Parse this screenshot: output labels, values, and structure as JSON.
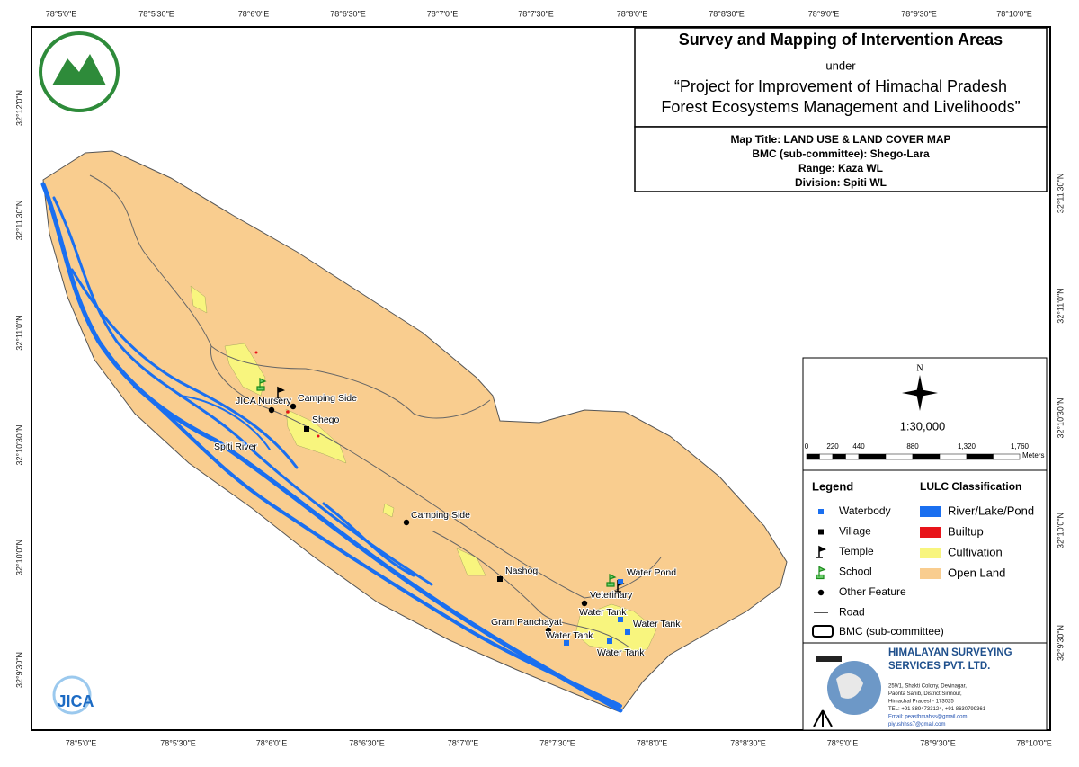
{
  "header": {
    "title": "Survey and Mapping of Intervention Areas",
    "connector": "under",
    "project": [
      "“Project for Improvement of Himachal Pradesh",
      "Forest Ecosystems Management and Livelihoods”"
    ]
  },
  "map_info": [
    "Map Title: LAND USE & LAND COVER MAP",
    "BMC (sub-committee): Shego-Lara",
    "Range: Kaza WL",
    "Division: Spiti WL"
  ],
  "graticule": {
    "top": [
      "78°5'0\"E",
      "78°5'30\"E",
      "78°6'0\"E",
      "78°6'30\"E",
      "78°7'0\"E",
      "78°7'30\"E",
      "78°8'0\"E",
      "78°8'30\"E",
      "78°9'0\"E",
      "78°9'30\"E",
      "78°10'0\"E"
    ],
    "bottom": [
      "78°5'0\"E",
      "78°5'30\"E",
      "78°6'0\"E",
      "78°6'30\"E",
      "78°7'0\"E",
      "78°7'30\"E",
      "78°8'0\"E",
      "78°8'30\"E",
      "78°9'0\"E",
      "78°9'30\"E",
      "78°10'0\"E"
    ],
    "left": [
      "32°12'0\"N",
      "32°11'30\"N",
      "32°11'0\"N",
      "32°10'30\"N",
      "32°10'0\"N",
      "32°9'30\"N"
    ],
    "right": [
      "32°11'30\"N",
      "32°11'0\"N",
      "32°10'30\"N",
      "32°10'0\"N",
      "32°9'30\"N"
    ]
  },
  "north": "N",
  "scale": "1:30,000",
  "scale_bar": {
    "labels": [
      "0",
      "220",
      "440",
      "880",
      "1,320",
      "1,760"
    ],
    "unit": "Meters"
  },
  "legend": {
    "title": "Legend",
    "items": [
      "Waterbody",
      "Village",
      "Temple",
      "School",
      "Other Feature",
      "Road"
    ],
    "bmc": "BMC (sub-committee)"
  },
  "lulc": {
    "title": "LULC Classification",
    "items": [
      {
        "label": "River/Lake/Pond",
        "color": "#1a6ff0"
      },
      {
        "label": "Builtup",
        "color": "#e8141a"
      },
      {
        "label": "Cultivation",
        "color": "#f8f57e"
      },
      {
        "label": "Open Land",
        "color": "#f9cd8f"
      }
    ]
  },
  "places": [
    "JICA Nursery",
    "Camping Side",
    "Shego",
    "Spiti River",
    "Camping Side",
    "Nashog",
    "Water Pond",
    "Veterinary",
    "Water Tank",
    "Gram Panchayat",
    "Water Tank",
    "Water Tank",
    "Water Tank"
  ],
  "company": {
    "name": [
      "HIMALAYAN SURVEYING",
      "SERVICES PVT. LTD."
    ],
    "address": [
      "259/1, Shakti Colony, Devinagar,",
      "Paonta Sahib, District Sirmour,",
      "Himachal Pradesh- 173025",
      "TEL: +91 8894733124, +91 8630799361",
      "Email: peasthmahss@gmail.com,",
      "piyushhss7@gmail.com"
    ]
  },
  "jica": "JICA"
}
